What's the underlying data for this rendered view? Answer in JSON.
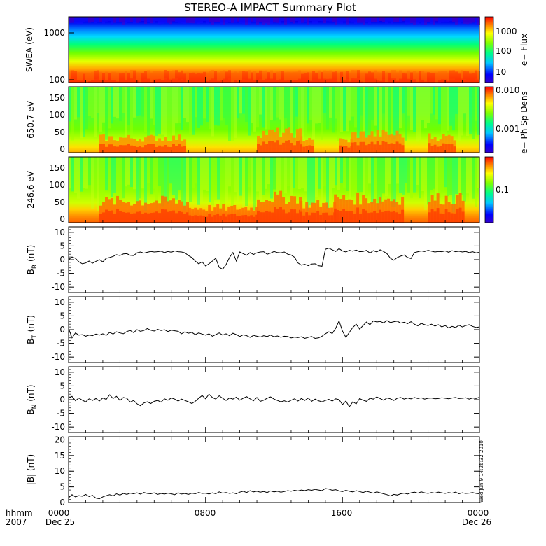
{
  "title": "STEREO-A IMPACT Summary Plot",
  "footer": {
    "time_label": "hhmm",
    "year": "2007",
    "x_ticks": [
      "0000",
      "0800",
      "1600",
      "0000"
    ],
    "date_labels": [
      "Dec 25",
      "",
      "",
      "Dec 26"
    ]
  },
  "timestamp": "Wed Jun 9 14:26:32 2010",
  "chart_data": [
    {
      "type": "heatmap",
      "ylabel": "SWEA (eV)",
      "yscale": "log",
      "ylim": [
        100,
        2000
      ],
      "y_ticks": [
        "1000",
        "100"
      ],
      "colorbar": {
        "label": "e− Flux",
        "ticks": [
          "1000",
          "100",
          "10"
        ],
        "scale": "log"
      },
      "description_colors": {
        "high": "#ff0000",
        "mid": "#00ff00",
        "low": "#0000ff"
      }
    },
    {
      "type": "heatmap",
      "ylabel": "650.7 eV",
      "ylim": [
        0,
        180
      ],
      "y_ticks": [
        "150",
        "100",
        "50",
        "0"
      ],
      "colorbar": {
        "label": "e− Ph Sp Dens",
        "ticks": [
          "0.010",
          "0.001"
        ],
        "scale": "log"
      }
    },
    {
      "type": "heatmap",
      "ylabel": "246.6 eV",
      "ylim": [
        0,
        180
      ],
      "y_ticks": [
        "150",
        "100",
        "50",
        "0"
      ],
      "colorbar": {
        "label": "e− Ph Sp Dens",
        "ticks": [
          "0.1"
        ],
        "scale": "log"
      }
    },
    {
      "type": "line",
      "ylabel_main": "B",
      "ylabel_sub": "R",
      "ylabel_unit": " (nT)",
      "ylim": [
        -12,
        12
      ],
      "y_ticks": [
        "10",
        "5",
        "0",
        "-5",
        "-10"
      ],
      "xlim": [
        0,
        24
      ],
      "x": [
        0,
        0.2,
        0.4,
        0.6,
        0.8,
        1,
        1.2,
        1.4,
        1.6,
        1.8,
        2,
        2.2,
        2.4,
        2.6,
        2.8,
        3,
        3.2,
        3.4,
        3.6,
        3.8,
        4,
        4.2,
        4.4,
        4.6,
        4.8,
        5,
        5.2,
        5.4,
        5.6,
        5.8,
        6,
        6.2,
        6.4,
        6.6,
        6.8,
        7,
        7.2,
        7.4,
        7.6,
        7.8,
        8,
        8.2,
        8.4,
        8.6,
        8.8,
        9,
        9.2,
        9.4,
        9.6,
        9.8,
        10,
        10.2,
        10.4,
        10.6,
        10.8,
        11,
        11.2,
        11.4,
        11.6,
        11.8,
        12,
        12.2,
        12.4,
        12.6,
        12.8,
        13,
        13.2,
        13.4,
        13.6,
        13.8,
        14,
        14.2,
        14.4,
        14.6,
        14.8,
        15,
        15.2,
        15.4,
        15.6,
        15.8,
        16,
        16.2,
        16.4,
        16.6,
        16.8,
        17,
        17.2,
        17.4,
        17.6,
        17.8,
        18,
        18.2,
        18.4,
        18.6,
        18.8,
        19,
        19.2,
        19.4,
        19.6,
        19.8,
        20,
        20.2,
        20.4,
        20.6,
        20.8,
        21,
        21.2,
        21.4,
        21.6,
        21.8,
        22,
        22.2,
        22.4,
        22.6,
        22.8,
        23,
        23.2,
        23.4,
        23.6,
        23.8,
        24
      ],
      "y": [
        0,
        1,
        0.5,
        -0.8,
        -1.5,
        -1.2,
        -0.5,
        -1.3,
        -0.6,
        0,
        -0.8,
        0.5,
        0.8,
        1.2,
        1.8,
        1.5,
        2.1,
        2.2,
        1.6,
        1.5,
        2.5,
        2.8,
        2.4,
        2.7,
        3.0,
        2.8,
        2.9,
        3.1,
        2.6,
        3.0,
        2.7,
        3.2,
        2.9,
        2.8,
        2.5,
        1.5,
        0.8,
        -0.5,
        -1.5,
        -0.8,
        -2.3,
        -1.5,
        -0.5,
        0.5,
        -2.8,
        -3.5,
        -1.8,
        0.8,
        2.6,
        -0.5,
        2.8,
        2.2,
        1.6,
        2.6,
        1.9,
        2.5,
        2.8,
        2.9,
        2.0,
        2.4,
        3.0,
        2.6,
        2.5,
        2.8,
        2.0,
        1.7,
        0.9,
        -1.2,
        -2.0,
        -1.7,
        -2.2,
        -1.6,
        -1.5,
        -2.2,
        -2.4,
        3.8,
        4.2,
        3.6,
        3.0,
        4.0,
        3.2,
        2.8,
        3.4,
        3.1,
        3.5,
        2.9,
        3.0,
        3.4,
        2.4,
        3.3,
        2.8,
        3.6,
        3.0,
        2.2,
        0.5,
        -0.2,
        0.8,
        1.3,
        1.7,
        0.8,
        0.4,
        2.6,
        2.9,
        3.2,
        3.0,
        3.4,
        3.1,
        2.8,
        3.0,
        2.9,
        3.2,
        2.7,
        3.3,
        2.9,
        3.1,
        2.8,
        3.0,
        2.6,
        2.9,
        2.5,
        2.7
      ]
    },
    {
      "type": "line",
      "ylabel_main": "B",
      "ylabel_sub": "T",
      "ylabel_unit": " (nT)",
      "ylim": [
        -12,
        12
      ],
      "y_ticks": [
        "10",
        "5",
        "0",
        "-5",
        "-10"
      ],
      "xlim": [
        0,
        24
      ],
      "x": [
        0,
        0.2,
        0.4,
        0.6,
        0.8,
        1,
        1.2,
        1.4,
        1.6,
        1.8,
        2,
        2.2,
        2.4,
        2.6,
        2.8,
        3,
        3.2,
        3.4,
        3.6,
        3.8,
        4,
        4.2,
        4.4,
        4.6,
        4.8,
        5,
        5.2,
        5.4,
        5.6,
        5.8,
        6,
        6.2,
        6.4,
        6.6,
        6.8,
        7,
        7.2,
        7.4,
        7.6,
        7.8,
        8,
        8.2,
        8.4,
        8.6,
        8.8,
        9,
        9.2,
        9.4,
        9.6,
        9.8,
        10,
        10.2,
        10.4,
        10.6,
        10.8,
        11,
        11.2,
        11.4,
        11.6,
        11.8,
        12,
        12.2,
        12.4,
        12.6,
        12.8,
        13,
        13.2,
        13.4,
        13.6,
        13.8,
        14,
        14.2,
        14.4,
        14.6,
        14.8,
        15,
        15.2,
        15.4,
        15.6,
        15.8,
        16,
        16.2,
        16.4,
        16.6,
        16.8,
        17,
        17.2,
        17.4,
        17.6,
        17.8,
        18,
        18.2,
        18.4,
        18.6,
        18.8,
        19,
        19.2,
        19.4,
        19.6,
        19.8,
        20,
        20.2,
        20.4,
        20.6,
        20.8,
        21,
        21.2,
        21.4,
        21.6,
        21.8,
        22,
        22.2,
        22.4,
        22.6,
        22.8,
        23,
        23.2,
        23.4,
        23.6,
        23.8,
        24
      ],
      "y": [
        0.5,
        -3.0,
        -1.2,
        -2.0,
        -1.8,
        -2.4,
        -2.0,
        -2.2,
        -1.6,
        -2.0,
        -1.5,
        -2.1,
        -1.0,
        -1.6,
        -0.8,
        -1.2,
        -1.5,
        -0.7,
        -0.3,
        -1.1,
        0.0,
        -0.6,
        -0.3,
        0.4,
        -0.2,
        -0.5,
        0.1,
        -0.3,
        0.0,
        -0.7,
        -0.2,
        -0.4,
        -0.6,
        -1.5,
        -0.8,
        -1.3,
        -1.0,
        -1.8,
        -1.2,
        -1.6,
        -2.0,
        -1.5,
        -2.4,
        -1.8,
        -1.2,
        -2.0,
        -1.5,
        -2.2,
        -1.3,
        -1.8,
        -2.5,
        -1.9,
        -2.2,
        -2.8,
        -2.1,
        -2.4,
        -2.7,
        -2.2,
        -2.5,
        -2.0,
        -2.6,
        -2.3,
        -2.8,
        -2.4,
        -2.5,
        -3.0,
        -2.7,
        -2.9,
        -2.6,
        -3.2,
        -2.8,
        -2.5,
        -3.2,
        -3.0,
        -2.4,
        -1.5,
        -0.8,
        -1.4,
        0.5,
        3.2,
        -0.5,
        -2.8,
        -1.0,
        0.8,
        2.0,
        0.2,
        1.5,
        2.8,
        1.8,
        3.2,
        2.8,
        3.0,
        2.5,
        3.3,
        2.6,
        2.9,
        3.1,
        2.4,
        2.7,
        2.2,
        2.9,
        2.0,
        1.4,
        2.3,
        1.8,
        1.5,
        2.0,
        1.3,
        1.8,
        1.0,
        1.5,
        0.6,
        1.2,
        0.8,
        1.6,
        1.0,
        1.5,
        1.8,
        1.2,
        0.8,
        1.0
      ]
    },
    {
      "type": "line",
      "ylabel_main": "B",
      "ylabel_sub": "N",
      "ylabel_unit": " (nT)",
      "ylim": [
        -12,
        12
      ],
      "y_ticks": [
        "10",
        "5",
        "0",
        "-5",
        "-10"
      ],
      "xlim": [
        0,
        24
      ],
      "x": [
        0,
        0.2,
        0.4,
        0.6,
        0.8,
        1,
        1.2,
        1.4,
        1.6,
        1.8,
        2,
        2.2,
        2.4,
        2.6,
        2.8,
        3,
        3.2,
        3.4,
        3.6,
        3.8,
        4,
        4.2,
        4.4,
        4.6,
        4.8,
        5,
        5.2,
        5.4,
        5.6,
        5.8,
        6,
        6.2,
        6.4,
        6.6,
        6.8,
        7,
        7.2,
        7.4,
        7.6,
        7.8,
        8,
        8.2,
        8.4,
        8.6,
        8.8,
        9,
        9.2,
        9.4,
        9.6,
        9.8,
        10,
        10.2,
        10.4,
        10.6,
        10.8,
        11,
        11.2,
        11.4,
        11.6,
        11.8,
        12,
        12.2,
        12.4,
        12.6,
        12.8,
        13,
        13.2,
        13.4,
        13.6,
        13.8,
        14,
        14.2,
        14.4,
        14.6,
        14.8,
        15,
        15.2,
        15.4,
        15.6,
        15.8,
        16,
        16.2,
        16.4,
        16.6,
        16.8,
        17,
        17.2,
        17.4,
        17.6,
        17.8,
        18,
        18.2,
        18.4,
        18.6,
        18.8,
        19,
        19.2,
        19.4,
        19.6,
        19.8,
        20,
        20.2,
        20.4,
        20.6,
        20.8,
        21,
        21.2,
        21.4,
        21.6,
        21.8,
        22,
        22.2,
        22.4,
        22.6,
        22.8,
        23,
        23.2,
        23.4,
        23.6,
        23.8,
        24
      ],
      "y": [
        0.5,
        1.2,
        -0.4,
        0.6,
        -0.2,
        -0.8,
        0.3,
        -0.3,
        0.4,
        -0.5,
        0.6,
        0.1,
        1.8,
        0.4,
        1.2,
        -0.3,
        0.8,
        0.5,
        -0.9,
        -0.3,
        -1.5,
        -2.2,
        -1.2,
        -0.8,
        -1.4,
        -0.6,
        -0.3,
        -0.9,
        0.3,
        -0.2,
        0.6,
        0.2,
        -0.5,
        0.2,
        -0.3,
        -0.8,
        -1.4,
        -0.6,
        0.5,
        1.5,
        0.3,
        2.0,
        0.8,
        0.2,
        1.4,
        0.5,
        -0.3,
        0.6,
        0.2,
        0.9,
        -0.2,
        0.5,
        1.1,
        0.3,
        -0.4,
        0.8,
        -0.6,
        -0.2,
        0.5,
        1.0,
        0.2,
        -0.3,
        -0.8,
        -0.4,
        -0.9,
        -0.2,
        0.3,
        -0.5,
        0.4,
        -0.3,
        0.6,
        -0.6,
        0.2,
        -0.4,
        -0.8,
        -0.3,
        0.1,
        -0.5,
        0.3,
        0.0,
        -1.8,
        -0.5,
        -2.6,
        -0.8,
        -1.5,
        0.4,
        -0.2,
        -0.6,
        0.5,
        0.2,
        1.0,
        0.4,
        -0.2,
        0.6,
        0.3,
        -0.3,
        0.5,
        0.8,
        0.2,
        0.6,
        0.3,
        0.8,
        0.4,
        0.7,
        0.2,
        0.5,
        0.6,
        0.3,
        0.4,
        0.7,
        0.5,
        0.3,
        0.6,
        0.8,
        0.4,
        0.5,
        0.7,
        0.2,
        0.6,
        0.4,
        0.9
      ]
    },
    {
      "type": "line",
      "ylabel_main": "|B|",
      "ylabel_unit": " (nT)",
      "ylim": [
        0,
        21
      ],
      "y_ticks": [
        "20",
        "15",
        "10",
        "5",
        "0"
      ],
      "xlim": [
        0,
        24
      ],
      "x": [
        0,
        0.2,
        0.4,
        0.6,
        0.8,
        1,
        1.2,
        1.4,
        1.6,
        1.8,
        2,
        2.2,
        2.4,
        2.6,
        2.8,
        3,
        3.2,
        3.4,
        3.6,
        3.8,
        4,
        4.2,
        4.4,
        4.6,
        4.8,
        5,
        5.2,
        5.4,
        5.6,
        5.8,
        6,
        6.2,
        6.4,
        6.6,
        6.8,
        7,
        7.2,
        7.4,
        7.6,
        7.8,
        8,
        8.2,
        8.4,
        8.6,
        8.8,
        9,
        9.2,
        9.4,
        9.6,
        9.8,
        10,
        10.2,
        10.4,
        10.6,
        10.8,
        11,
        11.2,
        11.4,
        11.6,
        11.8,
        12,
        12.2,
        12.4,
        12.6,
        12.8,
        13,
        13.2,
        13.4,
        13.6,
        13.8,
        14,
        14.2,
        14.4,
        14.6,
        14.8,
        15,
        15.2,
        15.4,
        15.6,
        15.8,
        16,
        16.2,
        16.4,
        16.6,
        16.8,
        17,
        17.2,
        17.4,
        17.6,
        17.8,
        18,
        18.2,
        18.4,
        18.6,
        18.8,
        19,
        19.2,
        19.4,
        19.6,
        19.8,
        20,
        20.2,
        20.4,
        20.6,
        20.8,
        21,
        21.2,
        21.4,
        21.6,
        21.8,
        22,
        22.2,
        22.4,
        22.6,
        22.8,
        23,
        23.2,
        23.4,
        23.6,
        23.8,
        24
      ],
      "y": [
        1.5,
        2.5,
        1.8,
        2.2,
        2.0,
        2.6,
        1.9,
        2.3,
        1.4,
        1.2,
        1.8,
        2.2,
        2.5,
        2.1,
        2.8,
        2.4,
        2.9,
        2.6,
        3.0,
        2.8,
        3.1,
        2.7,
        3.2,
        2.9,
        2.8,
        3.1,
        2.6,
        2.9,
        2.7,
        3.0,
        2.8,
        2.5,
        3.1,
        2.7,
        2.9,
        2.6,
        3.0,
        2.8,
        3.2,
        2.9,
        3.0,
        2.7,
        3.1,
        2.8,
        3.4,
        3.0,
        3.2,
        2.9,
        3.1,
        2.8,
        3.3,
        3.6,
        3.2,
        3.8,
        3.4,
        3.6,
        3.3,
        3.5,
        3.2,
        3.7,
        3.4,
        3.6,
        3.3,
        3.5,
        3.8,
        3.6,
        3.9,
        3.7,
        4.0,
        3.8,
        4.1,
        3.9,
        4.2,
        4.0,
        3.8,
        4.5,
        4.3,
        3.9,
        4.1,
        3.7,
        3.5,
        3.9,
        3.6,
        3.4,
        3.8,
        3.5,
        3.2,
        3.6,
        3.3,
        3.0,
        3.4,
        3.1,
        2.8,
        2.5,
        2.1,
        2.6,
        2.4,
        2.8,
        3.0,
        2.7,
        3.1,
        3.3,
        3.0,
        3.4,
        3.1,
        2.9,
        3.2,
        3.0,
        3.3,
        3.1,
        2.9,
        3.2,
        3.0,
        3.3,
        2.8,
        3.1,
        2.9,
        3.0,
        3.2,
        2.9,
        2.8
      ]
    }
  ]
}
